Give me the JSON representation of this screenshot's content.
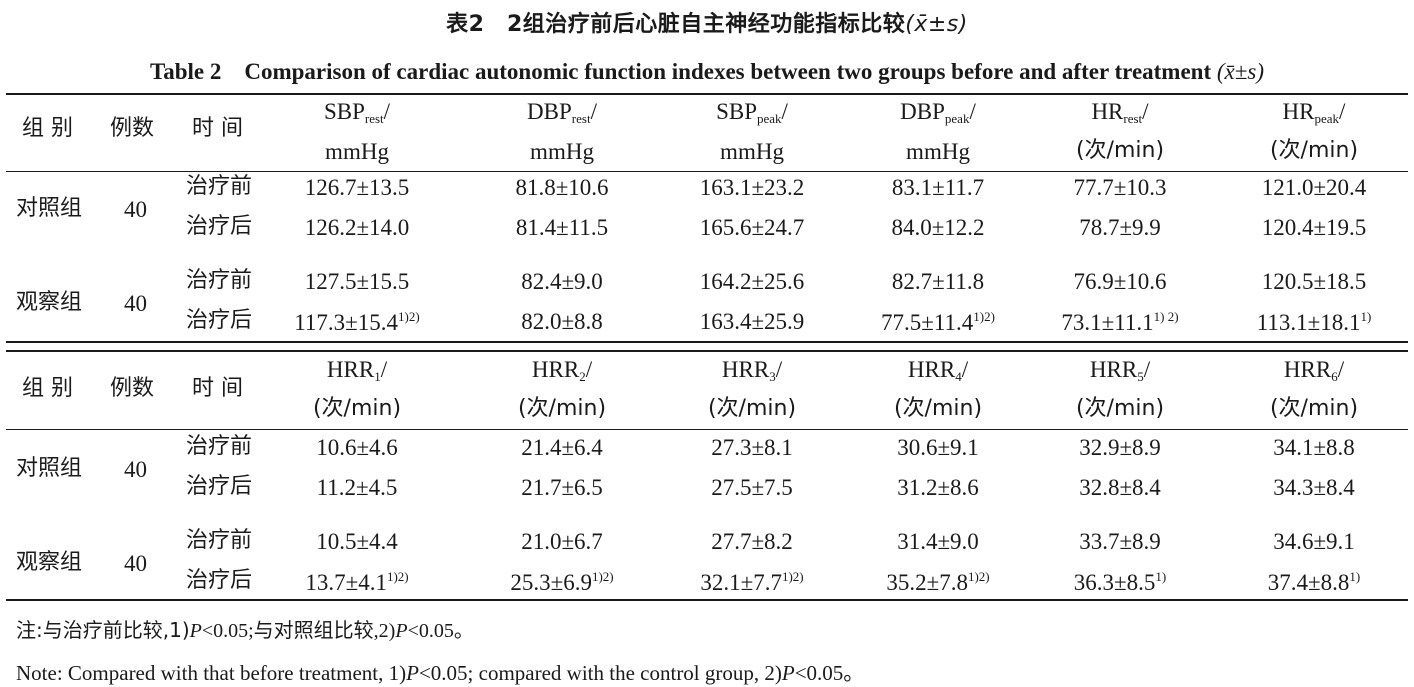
{
  "title_cn": {
    "label": "表2　2组治疗前后心脏自主神经功能指标比较",
    "stat": "(x̄±s)"
  },
  "title_en": {
    "label": "Table 2　Comparison of cardiac autonomic function indexes between two groups before and after treatment",
    "stat": "(x̄±s)"
  },
  "tables": [
    {
      "header": {
        "group": "组 别",
        "cases": "例数",
        "time": "时 间",
        "columns": [
          {
            "name": "SBP",
            "sub": "rest",
            "unit": "mmHg"
          },
          {
            "name": "DBP",
            "sub": "rest",
            "unit": "mmHg"
          },
          {
            "name": "SBP",
            "sub": "peak",
            "unit": "mmHg"
          },
          {
            "name": "DBP",
            "sub": "peak",
            "unit": "mmHg"
          },
          {
            "name": "HR",
            "sub": "rest",
            "unit": "(次/min)"
          },
          {
            "name": "HR",
            "sub": "peak",
            "unit": "(次/min)"
          }
        ]
      },
      "groups": [
        {
          "name": "对照组",
          "n": "40",
          "rows": [
            {
              "time": "治疗前",
              "values": [
                {
                  "v": "126.7±13.5",
                  "sup": ""
                },
                {
                  "v": "81.8±10.6",
                  "sup": ""
                },
                {
                  "v": "163.1±23.2",
                  "sup": ""
                },
                {
                  "v": "83.1±11.7",
                  "sup": ""
                },
                {
                  "v": "77.7±10.3",
                  "sup": ""
                },
                {
                  "v": "121.0±20.4",
                  "sup": ""
                }
              ]
            },
            {
              "time": "治疗后",
              "values": [
                {
                  "v": "126.2±14.0",
                  "sup": ""
                },
                {
                  "v": "81.4±11.5",
                  "sup": ""
                },
                {
                  "v": "165.6±24.7",
                  "sup": ""
                },
                {
                  "v": "84.0±12.2",
                  "sup": ""
                },
                {
                  "v": "78.7±9.9",
                  "sup": ""
                },
                {
                  "v": "120.4±19.5",
                  "sup": ""
                }
              ]
            }
          ]
        },
        {
          "name": "观察组",
          "n": "40",
          "rows": [
            {
              "time": "治疗前",
              "values": [
                {
                  "v": "127.5±15.5",
                  "sup": ""
                },
                {
                  "v": "82.4±9.0",
                  "sup": ""
                },
                {
                  "v": "164.2±25.6",
                  "sup": ""
                },
                {
                  "v": "82.7±11.8",
                  "sup": ""
                },
                {
                  "v": "76.9±10.6",
                  "sup": ""
                },
                {
                  "v": "120.5±18.5",
                  "sup": ""
                }
              ]
            },
            {
              "time": "治疗后",
              "values": [
                {
                  "v": "117.3±15.4",
                  "sup": "1)2)"
                },
                {
                  "v": "82.0±8.8",
                  "sup": ""
                },
                {
                  "v": "163.4±25.9",
                  "sup": ""
                },
                {
                  "v": "77.5±11.4",
                  "sup": "1)2)"
                },
                {
                  "v": "73.1±11.1",
                  "sup": "1) 2)"
                },
                {
                  "v": "113.1±18.1",
                  "sup": "1)"
                }
              ]
            }
          ]
        }
      ]
    },
    {
      "header": {
        "group": "组 别",
        "cases": "例数",
        "time": "时 间",
        "columns": [
          {
            "name": "HRR",
            "sub": "1",
            "unit": "(次/min)"
          },
          {
            "name": "HRR",
            "sub": "2",
            "unit": "(次/min)"
          },
          {
            "name": "HRR",
            "sub": "3",
            "unit": "(次/min)"
          },
          {
            "name": "HRR",
            "sub": "4",
            "unit": "(次/min)"
          },
          {
            "name": "HRR",
            "sub": "5",
            "unit": "(次/min)"
          },
          {
            "name": "HRR",
            "sub": "6",
            "unit": "(次/min)"
          }
        ]
      },
      "groups": [
        {
          "name": "对照组",
          "n": "40",
          "rows": [
            {
              "time": "治疗前",
              "values": [
                {
                  "v": "10.6±4.6",
                  "sup": ""
                },
                {
                  "v": "21.4±6.4",
                  "sup": ""
                },
                {
                  "v": "27.3±8.1",
                  "sup": ""
                },
                {
                  "v": "30.6±9.1",
                  "sup": ""
                },
                {
                  "v": "32.9±8.9",
                  "sup": ""
                },
                {
                  "v": "34.1±8.8",
                  "sup": ""
                }
              ]
            },
            {
              "time": "治疗后",
              "values": [
                {
                  "v": "11.2±4.5",
                  "sup": ""
                },
                {
                  "v": "21.7±6.5",
                  "sup": ""
                },
                {
                  "v": "27.5±7.5",
                  "sup": ""
                },
                {
                  "v": "31.2±8.6",
                  "sup": ""
                },
                {
                  "v": "32.8±8.4",
                  "sup": ""
                },
                {
                  "v": "34.3±8.4",
                  "sup": ""
                }
              ]
            }
          ]
        },
        {
          "name": "观察组",
          "n": "40",
          "rows": [
            {
              "time": "治疗前",
              "values": [
                {
                  "v": "10.5±4.4",
                  "sup": ""
                },
                {
                  "v": "21.0±6.7",
                  "sup": ""
                },
                {
                  "v": "27.7±8.2",
                  "sup": ""
                },
                {
                  "v": "31.4±9.0",
                  "sup": ""
                },
                {
                  "v": "33.7±8.9",
                  "sup": ""
                },
                {
                  "v": "34.6±9.1",
                  "sup": ""
                }
              ]
            },
            {
              "time": "治疗后",
              "values": [
                {
                  "v": "13.7±4.1",
                  "sup": "1)2)"
                },
                {
                  "v": "25.3±6.9",
                  "sup": "1)2)"
                },
                {
                  "v": "32.1±7.7",
                  "sup": "1)2)"
                },
                {
                  "v": "35.2±7.8",
                  "sup": "1)2)"
                },
                {
                  "v": "36.3±8.5",
                  "sup": "1)"
                },
                {
                  "v": "37.4±8.8",
                  "sup": "1)"
                }
              ]
            }
          ]
        }
      ]
    }
  ],
  "note_cn": {
    "a": "注:与治疗前比较,1)",
    "b": "<0.05;与对照组比较,2)",
    "c": "<0.05。",
    "p": "P"
  },
  "note_en": {
    "a": "Note: Compared with that before treatment, 1)",
    "b": "<0.05; compared with the control group, 2)",
    "c": "<0.05。",
    "p": "P"
  }
}
